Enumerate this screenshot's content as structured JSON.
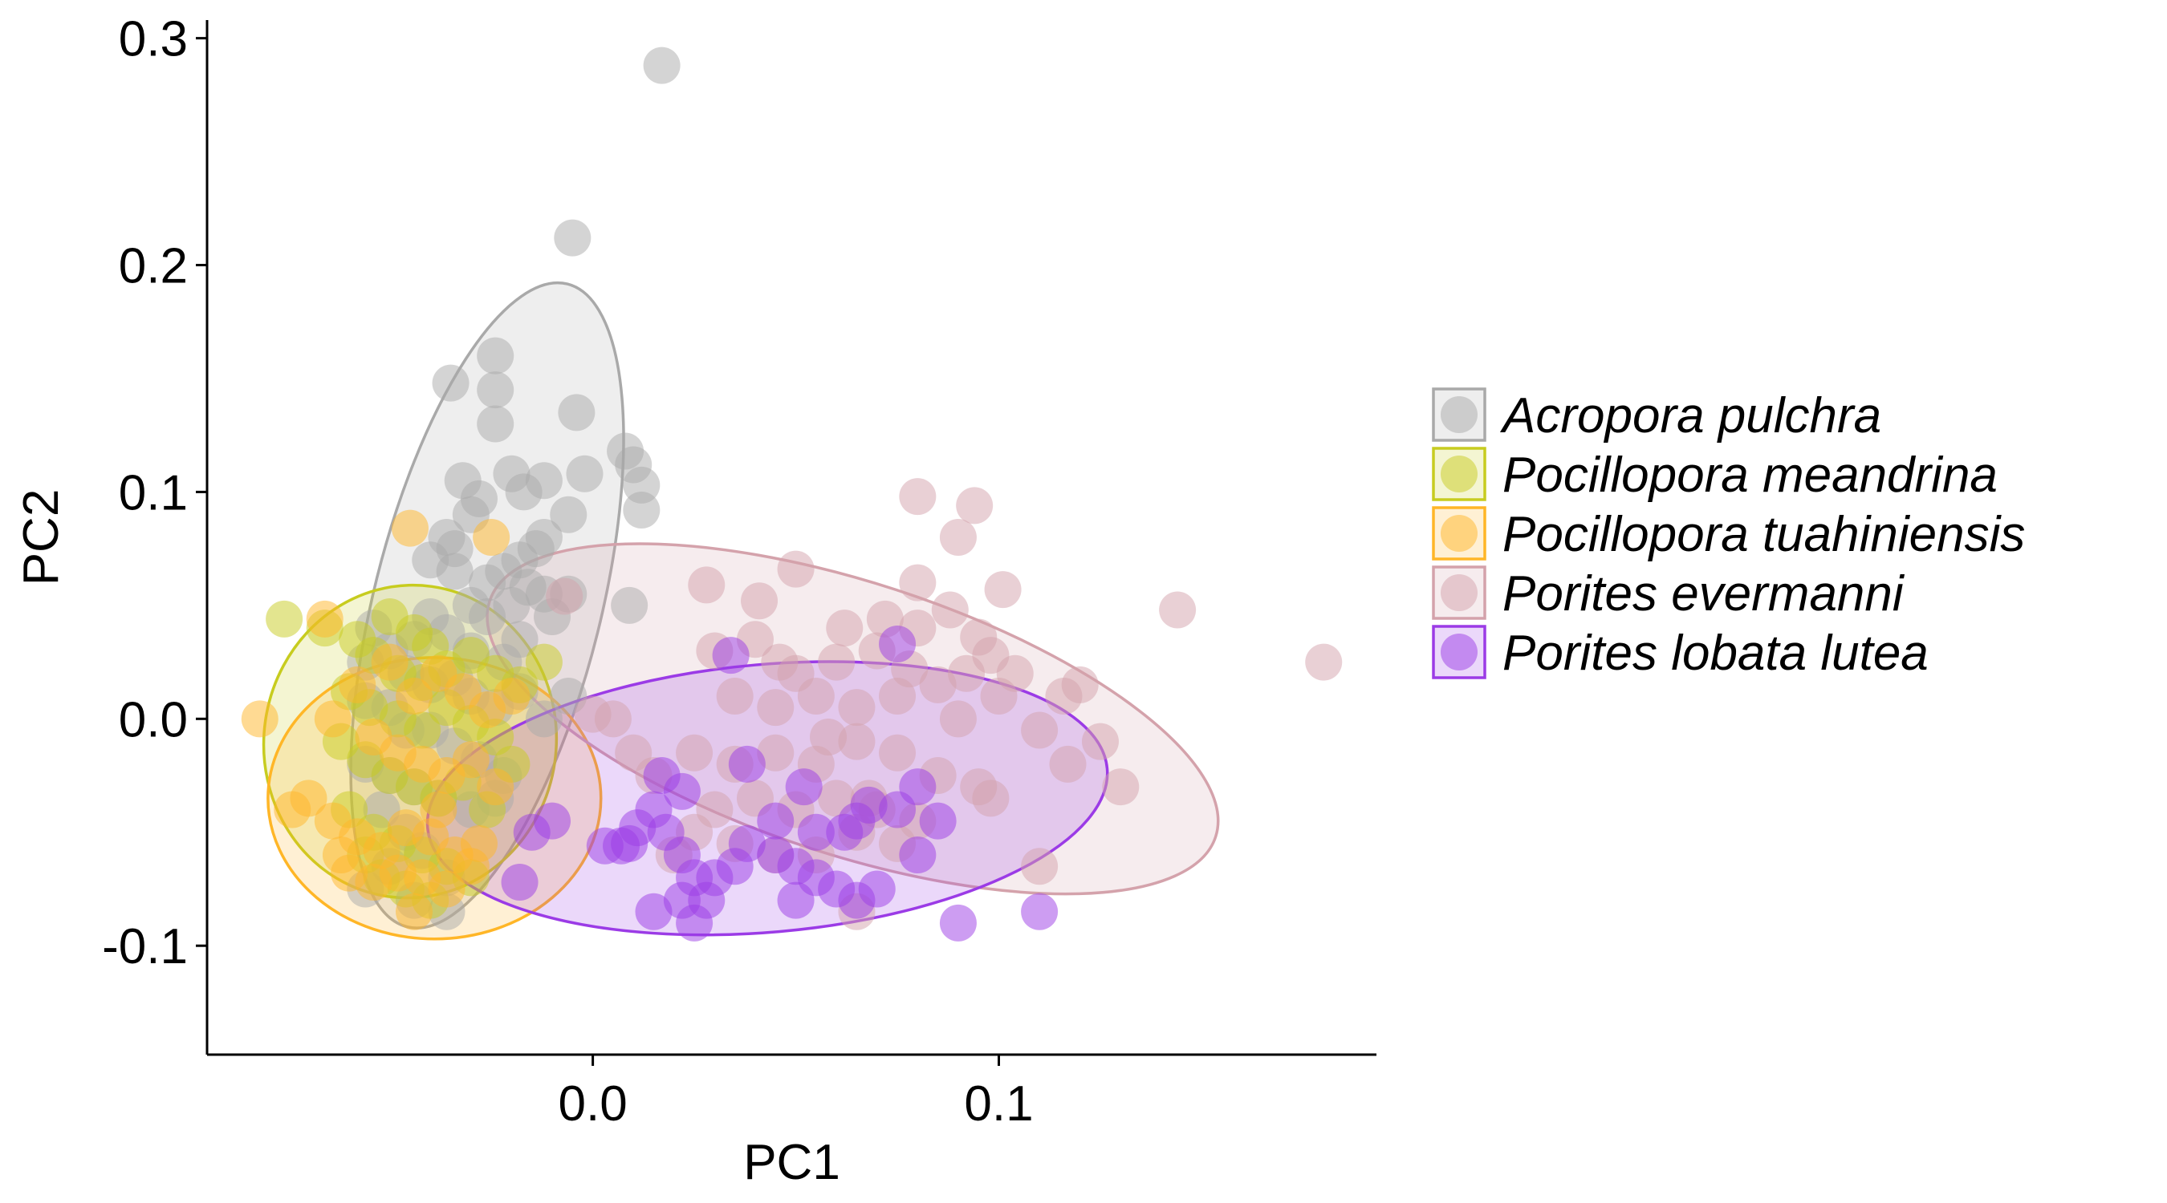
{
  "chart_data": {
    "type": "scatter",
    "xlabel": "PC1",
    "ylabel": "PC2",
    "xlim": [
      -0.095,
      0.193
    ],
    "ylim": [
      -0.148,
      0.308
    ],
    "x_ticks": [
      {
        "value": 0.0,
        "label": "0.0"
      },
      {
        "value": 0.1,
        "label": "0.1"
      }
    ],
    "y_ticks": [
      {
        "value": -0.1,
        "label": "-0.1"
      },
      {
        "value": 0.0,
        "label": "0.0"
      },
      {
        "value": 0.1,
        "label": "0.1"
      },
      {
        "value": 0.2,
        "label": "0.2"
      },
      {
        "value": 0.3,
        "label": "0.3"
      }
    ],
    "grid": false,
    "legend_position": "right",
    "point_opacity": 0.5,
    "ellipse_fill_opacity": 0.2,
    "series": [
      {
        "name": "Acropora pulchra",
        "color": "#A9A9A9",
        "ellipse": {
          "center": [
            -0.026,
            0.05
          ],
          "semi_axes": [
            0.028,
            0.146
          ],
          "angle_deg": 14
        },
        "points": [
          [
            0.017,
            0.288
          ],
          [
            -0.005,
            0.212
          ],
          [
            -0.035,
            0.148
          ],
          [
            -0.024,
            0.16
          ],
          [
            -0.024,
            0.145
          ],
          [
            -0.024,
            0.13
          ],
          [
            -0.004,
            0.135
          ],
          [
            0.008,
            0.118
          ],
          [
            0.01,
            0.112
          ],
          [
            0.012,
            0.103
          ],
          [
            0.012,
            0.092
          ],
          [
            -0.032,
            0.105
          ],
          [
            -0.028,
            0.097
          ],
          [
            -0.03,
            0.09
          ],
          [
            -0.02,
            0.108
          ],
          [
            -0.017,
            0.1
          ],
          [
            -0.012,
            0.105
          ],
          [
            -0.002,
            0.108
          ],
          [
            -0.006,
            0.09
          ],
          [
            -0.012,
            0.08
          ],
          [
            -0.036,
            0.08
          ],
          [
            -0.04,
            0.07
          ],
          [
            -0.034,
            0.075
          ],
          [
            -0.026,
            0.06
          ],
          [
            -0.022,
            0.065
          ],
          [
            -0.018,
            0.07
          ],
          [
            -0.014,
            0.075
          ],
          [
            -0.016,
            0.058
          ],
          [
            -0.034,
            0.065
          ],
          [
            -0.03,
            0.05
          ],
          [
            -0.026,
            0.045
          ],
          [
            -0.02,
            0.05
          ],
          [
            -0.012,
            0.055
          ],
          [
            -0.01,
            0.045
          ],
          [
            -0.006,
            0.055
          ],
          [
            0.009,
            0.05
          ],
          [
            -0.04,
            0.045
          ],
          [
            -0.036,
            0.038
          ],
          [
            -0.044,
            0.035
          ],
          [
            -0.03,
            0.03
          ],
          [
            -0.022,
            0.025
          ],
          [
            -0.018,
            0.035
          ],
          [
            -0.054,
            0.04
          ],
          [
            -0.05,
            0.03
          ],
          [
            -0.056,
            0.025
          ],
          [
            -0.046,
            0.02
          ],
          [
            -0.04,
            0.015
          ],
          [
            -0.034,
            0.018
          ],
          [
            -0.03,
            0.01
          ],
          [
            -0.024,
            0.005
          ],
          [
            -0.018,
            0.012
          ],
          [
            -0.012,
            0.0
          ],
          [
            -0.05,
            0.005
          ],
          [
            -0.046,
            -0.005
          ],
          [
            -0.056,
            0.008
          ],
          [
            -0.04,
            -0.005
          ],
          [
            -0.034,
            -0.012
          ],
          [
            -0.028,
            -0.018
          ],
          [
            -0.022,
            -0.025
          ],
          [
            -0.056,
            -0.02
          ],
          [
            -0.05,
            -0.025
          ],
          [
            -0.044,
            -0.03
          ],
          [
            -0.038,
            -0.035
          ],
          [
            -0.03,
            -0.04
          ],
          [
            -0.024,
            -0.035
          ],
          [
            -0.052,
            -0.04
          ],
          [
            -0.046,
            -0.05
          ],
          [
            -0.042,
            -0.058
          ],
          [
            -0.05,
            -0.065
          ],
          [
            -0.036,
            -0.07
          ],
          [
            -0.056,
            -0.075
          ],
          [
            -0.044,
            -0.08
          ],
          [
            -0.036,
            -0.085
          ],
          [
            -0.006,
            0.01
          ]
        ]
      },
      {
        "name": "Pocillopora meandrina",
        "color": "#C7CC1F",
        "ellipse": {
          "center": [
            -0.045,
            -0.01
          ],
          "semi_axes": [
            0.036,
            0.069
          ],
          "angle_deg": 8
        },
        "points": [
          [
            -0.076,
            0.044
          ],
          [
            -0.066,
            0.04
          ],
          [
            -0.058,
            0.035
          ],
          [
            -0.05,
            0.045
          ],
          [
            -0.044,
            0.038
          ],
          [
            -0.04,
            0.032
          ],
          [
            -0.054,
            0.028
          ],
          [
            -0.048,
            0.02
          ],
          [
            -0.042,
            0.016
          ],
          [
            -0.036,
            0.022
          ],
          [
            -0.03,
            0.028
          ],
          [
            -0.024,
            0.02
          ],
          [
            -0.018,
            0.015
          ],
          [
            -0.012,
            0.025
          ],
          [
            -0.06,
            0.012
          ],
          [
            -0.055,
            0.005
          ],
          [
            -0.048,
            0.0
          ],
          [
            -0.042,
            -0.005
          ],
          [
            -0.036,
            0.005
          ],
          [
            -0.03,
            -0.002
          ],
          [
            -0.024,
            -0.008
          ],
          [
            -0.062,
            -0.01
          ],
          [
            -0.056,
            -0.018
          ],
          [
            -0.05,
            -0.025
          ],
          [
            -0.044,
            -0.03
          ],
          [
            -0.038,
            -0.035
          ],
          [
            -0.032,
            -0.028
          ],
          [
            -0.026,
            -0.04
          ],
          [
            -0.06,
            -0.04
          ],
          [
            -0.054,
            -0.05
          ],
          [
            -0.048,
            -0.055
          ],
          [
            -0.042,
            -0.06
          ],
          [
            -0.036,
            -0.065
          ],
          [
            -0.03,
            -0.07
          ],
          [
            -0.052,
            -0.07
          ],
          [
            -0.046,
            -0.075
          ],
          [
            -0.04,
            -0.08
          ],
          [
            -0.056,
            -0.06
          ],
          [
            -0.02,
            -0.02
          ]
        ]
      },
      {
        "name": "Pocillopora tuahiniensis",
        "color": "#FFB627",
        "ellipse": {
          "center": [
            -0.039,
            -0.035
          ],
          "semi_axes": [
            0.041,
            0.062
          ],
          "angle_deg": 0
        },
        "points": [
          [
            -0.045,
            0.084
          ],
          [
            -0.025,
            0.08
          ],
          [
            -0.066,
            0.044
          ],
          [
            -0.082,
            0.0
          ],
          [
            -0.064,
            0.0
          ],
          [
            -0.058,
            0.015
          ],
          [
            -0.05,
            0.025
          ],
          [
            -0.044,
            0.01
          ],
          [
            -0.038,
            0.02
          ],
          [
            -0.032,
            0.012
          ],
          [
            -0.026,
            0.004
          ],
          [
            -0.02,
            0.01
          ],
          [
            -0.054,
            -0.008
          ],
          [
            -0.048,
            -0.015
          ],
          [
            -0.042,
            -0.02
          ],
          [
            -0.036,
            -0.025
          ],
          [
            -0.03,
            -0.018
          ],
          [
            -0.024,
            -0.03
          ],
          [
            -0.07,
            -0.035
          ],
          [
            -0.074,
            -0.04
          ],
          [
            -0.064,
            -0.045
          ],
          [
            -0.058,
            -0.052
          ],
          [
            -0.052,
            -0.058
          ],
          [
            -0.046,
            -0.048
          ],
          [
            -0.04,
            -0.052
          ],
          [
            -0.034,
            -0.06
          ],
          [
            -0.028,
            -0.055
          ],
          [
            -0.06,
            -0.068
          ],
          [
            -0.054,
            -0.072
          ],
          [
            -0.048,
            -0.068
          ],
          [
            -0.042,
            -0.07
          ],
          [
            -0.036,
            -0.075
          ],
          [
            -0.03,
            -0.065
          ],
          [
            -0.044,
            -0.085
          ],
          [
            -0.038,
            -0.04
          ],
          [
            -0.062,
            -0.06
          ]
        ]
      },
      {
        "name": "Porites evermanni",
        "color": "#D4A2AB",
        "ellipse": {
          "center": [
            0.064,
            0.0
          ],
          "semi_axes": [
            0.094,
            0.06
          ],
          "angle_deg": 18
        },
        "points": [
          [
            0.08,
            0.098
          ],
          [
            0.094,
            0.094
          ],
          [
            0.09,
            0.08
          ],
          [
            0.05,
            0.066
          ],
          [
            0.028,
            0.059
          ],
          [
            0.08,
            0.06
          ],
          [
            0.101,
            0.057
          ],
          [
            0.144,
            0.048
          ],
          [
            0.18,
            0.025
          ],
          [
            0.041,
            0.052
          ],
          [
            0.062,
            0.04
          ],
          [
            0.072,
            0.044
          ],
          [
            0.08,
            0.04
          ],
          [
            0.088,
            0.048
          ],
          [
            0.095,
            0.036
          ],
          [
            0.098,
            0.028
          ],
          [
            0.104,
            0.02
          ],
          [
            0.116,
            0.01
          ],
          [
            0.12,
            0.015
          ],
          [
            0.03,
            0.03
          ],
          [
            0.04,
            0.035
          ],
          [
            0.05,
            0.02
          ],
          [
            0.06,
            0.025
          ],
          [
            0.07,
            0.03
          ],
          [
            0.078,
            0.022
          ],
          [
            0.085,
            0.015
          ],
          [
            0.092,
            0.02
          ],
          [
            0.1,
            0.01
          ],
          [
            0.035,
            0.01
          ],
          [
            0.045,
            0.005
          ],
          [
            0.055,
            0.01
          ],
          [
            0.065,
            0.005
          ],
          [
            0.075,
            0.01
          ],
          [
            0.09,
            0.0
          ],
          [
            0.11,
            -0.005
          ],
          [
            0.125,
            -0.01
          ],
          [
            0.13,
            -0.03
          ],
          [
            0.117,
            -0.02
          ],
          [
            0.025,
            -0.015
          ],
          [
            0.035,
            -0.02
          ],
          [
            0.045,
            -0.015
          ],
          [
            0.055,
            -0.02
          ],
          [
            0.065,
            -0.01
          ],
          [
            0.075,
            -0.015
          ],
          [
            0.085,
            -0.025
          ],
          [
            0.095,
            -0.03
          ],
          [
            0.098,
            -0.035
          ],
          [
            0.03,
            -0.04
          ],
          [
            0.04,
            -0.035
          ],
          [
            0.05,
            -0.04
          ],
          [
            0.06,
            -0.035
          ],
          [
            0.07,
            -0.04
          ],
          [
            0.08,
            -0.045
          ],
          [
            0.025,
            -0.05
          ],
          [
            0.02,
            -0.06
          ],
          [
            0.035,
            -0.055
          ],
          [
            0.045,
            -0.06
          ],
          [
            0.055,
            -0.06
          ],
          [
            0.065,
            -0.05
          ],
          [
            0.075,
            -0.055
          ],
          [
            0.11,
            -0.065
          ],
          [
            0.065,
            -0.085
          ],
          [
            0.01,
            -0.015
          ],
          [
            0.015,
            -0.025
          ],
          [
            0.005,
            0.0
          ],
          [
            0.0,
            0.002
          ],
          [
            -0.007,
            0.054
          ],
          [
            0.068,
            -0.035
          ],
          [
            0.058,
            -0.008
          ],
          [
            0.046,
            0.025
          ]
        ]
      },
      {
        "name": "Porites lobata lutea",
        "color": "#9B3BE6",
        "ellipse": {
          "center": [
            0.043,
            -0.035
          ],
          "semi_axes": [
            0.084,
            0.059
          ],
          "angle_deg": -5
        },
        "points": [
          [
            0.034,
            0.028
          ],
          [
            0.075,
            0.033
          ],
          [
            0.017,
            -0.025
          ],
          [
            0.022,
            -0.032
          ],
          [
            0.007,
            -0.056
          ],
          [
            0.011,
            -0.048
          ],
          [
            0.015,
            -0.04
          ],
          [
            0.018,
            -0.05
          ],
          [
            0.022,
            -0.06
          ],
          [
            0.025,
            -0.07
          ],
          [
            0.028,
            -0.08
          ],
          [
            0.03,
            -0.07
          ],
          [
            0.038,
            -0.055
          ],
          [
            0.045,
            -0.06
          ],
          [
            0.05,
            -0.065
          ],
          [
            0.055,
            -0.07
          ],
          [
            0.06,
            -0.075
          ],
          [
            0.065,
            -0.08
          ],
          [
            0.045,
            -0.045
          ],
          [
            0.055,
            -0.05
          ],
          [
            0.065,
            -0.045
          ],
          [
            0.075,
            -0.04
          ],
          [
            0.085,
            -0.045
          ],
          [
            0.08,
            -0.03
          ],
          [
            -0.01,
            -0.045
          ],
          [
            -0.015,
            -0.05
          ],
          [
            -0.018,
            -0.072
          ],
          [
            0.015,
            -0.085
          ],
          [
            0.025,
            -0.09
          ],
          [
            0.05,
            -0.08
          ],
          [
            0.07,
            -0.075
          ],
          [
            0.09,
            -0.09
          ],
          [
            0.11,
            -0.085
          ],
          [
            0.003,
            -0.056
          ],
          [
            0.009,
            -0.055
          ],
          [
            0.038,
            -0.02
          ],
          [
            0.052,
            -0.03
          ],
          [
            0.062,
            -0.05
          ],
          [
            0.022,
            -0.08
          ],
          [
            0.035,
            -0.065
          ],
          [
            0.08,
            -0.06
          ],
          [
            0.068,
            -0.038
          ]
        ]
      }
    ]
  }
}
